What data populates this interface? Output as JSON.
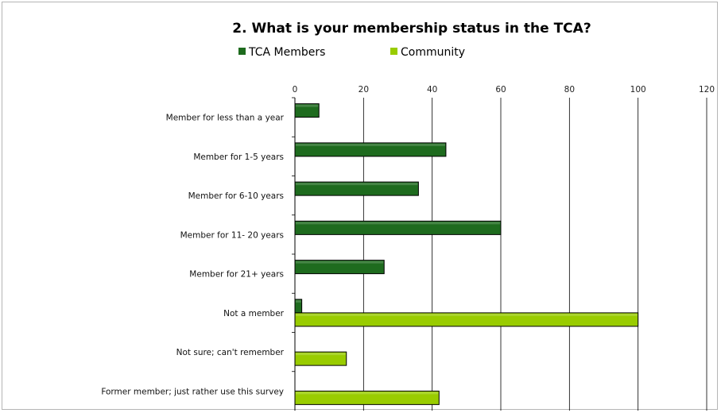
{
  "chart_data": {
    "type": "bar",
    "orientation": "horizontal",
    "title": "2.  What is your membership status in the TCA?",
    "xlabel": "",
    "ylabel": "",
    "xlim": [
      0,
      120
    ],
    "ticks": [
      0,
      20,
      40,
      60,
      80,
      100,
      120
    ],
    "tick_labels": [
      "0",
      "20",
      "40",
      "60",
      "80",
      "100",
      "120"
    ],
    "grid": "vertical",
    "legend_position": "top-center",
    "categories": [
      "Member for less than a year",
      "Member for 1-5 years",
      "Member for 6-10 years",
      "Member for 11- 20 years",
      "Member for 21+ years",
      "Not a member",
      "Not sure; can't remember",
      "Former member; just rather use this survey"
    ],
    "series": [
      {
        "name": "TCA Members",
        "color": "#1e6b1e",
        "values": [
          7,
          44,
          36,
          60,
          26,
          2,
          0,
          0
        ]
      },
      {
        "name": "Community",
        "color": "#99cc00",
        "values": [
          0,
          0,
          0,
          0,
          0,
          100,
          15,
          42
        ]
      }
    ]
  }
}
